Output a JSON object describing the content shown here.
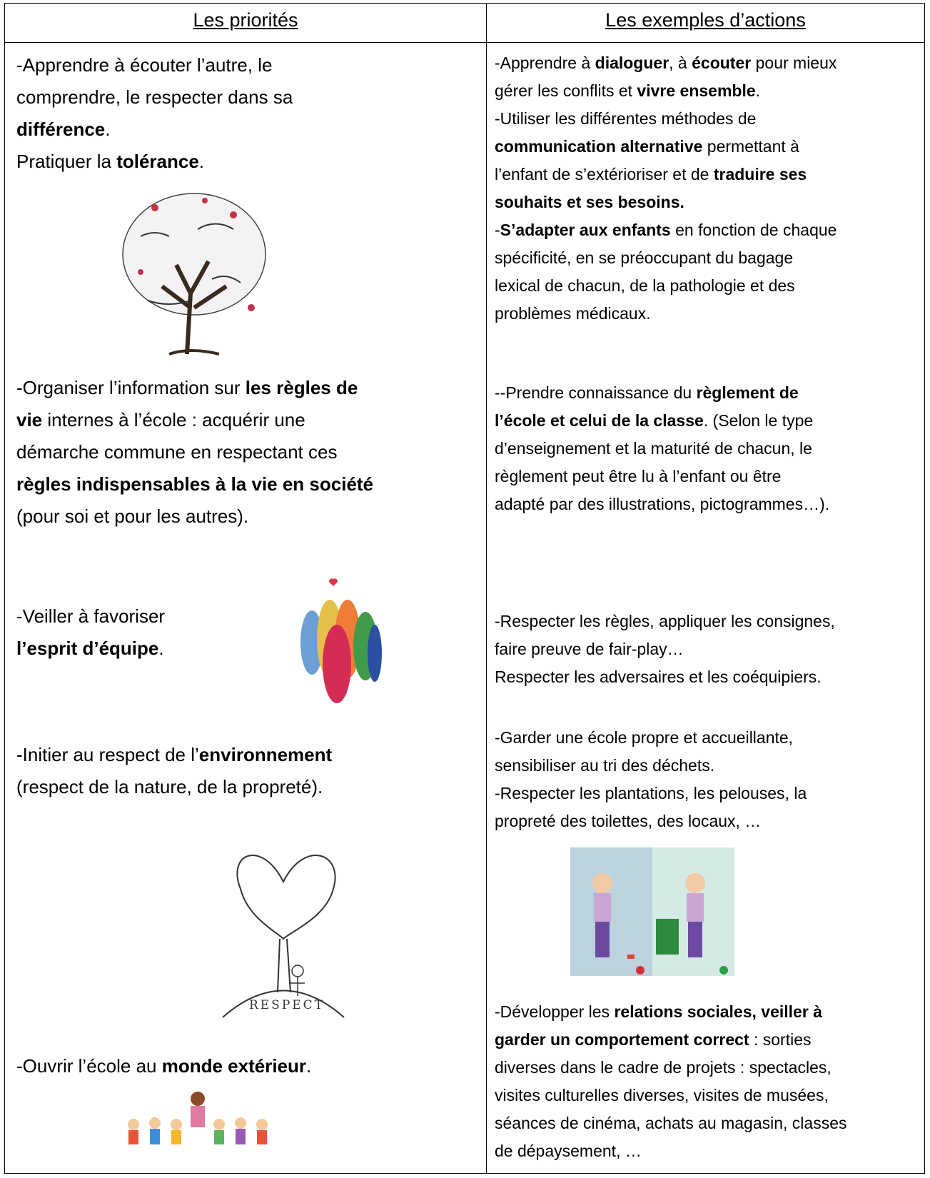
{
  "header": [
    "Les priorités",
    "Les exemples d’actions"
  ],
  "priorities": [
    [
      [
        "-Apprendre à écouter l’autre, le"
      ],
      [
        "comprendre, le respecter dans sa"
      ],
      [
        {
          "text": "différence",
          "bold": true
        },
        "."
      ],
      [
        "Pratiquer la ",
        {
          "text": "tolérance",
          "bold": true
        },
        "."
      ]
    ],
    [
      [
        "-Organiser l’information sur ",
        {
          "text": "les règles de",
          "bold": true
        }
      ],
      [
        {
          "text": "vie",
          "bold": true
        },
        " internes à l’école : acquérir une"
      ],
      [
        "démarche commune en respectant ces"
      ],
      [
        {
          "text": "règles indispensables à la vie en société",
          "bold": true
        }
      ],
      [
        "(pour soi et pour les autres)."
      ]
    ],
    [
      [
        "-Veiller à favoriser"
      ],
      [
        {
          "text": "l’esprit d’équipe",
          "bold": true
        },
        "."
      ]
    ],
    [
      [
        "-Initier au respect de l’",
        {
          "text": "environnement",
          "bold": true
        }
      ],
      [
        "(respect de la nature, de la propreté)."
      ]
    ],
    [
      [
        "-Ouvrir l’école au ",
        {
          "text": "monde extérieur",
          "bold": true
        },
        "."
      ]
    ]
  ],
  "actions": [
    [
      [
        "-Apprendre à ",
        {
          "text": "dialoguer",
          "bold": true
        },
        ", à ",
        {
          "text": "écouter",
          "bold": true
        },
        " pour mieux"
      ],
      [
        "gérer les conflits et ",
        {
          "text": "vivre ensemble",
          "bold": true
        },
        "."
      ],
      [
        "-Utiliser les différentes méthodes de"
      ],
      [
        {
          "text": "communication alternative",
          "bold": true
        },
        " permettant à"
      ],
      [
        "l’enfant de s’extérioriser et de ",
        {
          "text": "traduire ses",
          "bold": true
        }
      ],
      [
        {
          "text": "souhaits et ses besoins.",
          "bold": true
        }
      ],
      [
        "-",
        {
          "text": "S’adapter aux enfants",
          "bold": true
        },
        " en fonction de chaque"
      ],
      [
        "spécificité, en se préoccupant du bagage"
      ],
      [
        "lexical de chacun, de la pathologie et des"
      ],
      [
        "problèmes médicaux."
      ]
    ],
    [
      [
        "--Prendre connaissance du ",
        {
          "text": "règlement de",
          "bold": true
        }
      ],
      [
        {
          "text": "l’école et celui de la classe",
          "bold": true
        },
        ". (Selon le type"
      ],
      [
        "d’enseignement et la maturité de chacun, le"
      ],
      [
        "règlement peut être lu à l’enfant ou être"
      ],
      [
        "adapté par des illustrations, pictogrammes…)."
      ]
    ],
    [
      [
        "-Respecter les règles, appliquer les consignes,"
      ],
      [
        "faire preuve de fair-play…"
      ],
      [
        "Respecter les adversaires et les coéquipiers."
      ]
    ],
    [
      [
        "-Garder une école propre et accueillante,"
      ],
      [
        "sensibiliser au tri des déchets."
      ],
      [
        "-Respecter les plantations, les pelouses, la"
      ],
      [
        "propreté des toilettes, des locaux, …"
      ]
    ],
    [
      [
        "-Développer les ",
        {
          "text": "relations sociales, veiller à",
          "bold": true
        }
      ],
      [
        {
          "text": "garder un comportement correct",
          "bold": true
        },
        " : sorties"
      ],
      [
        "diverses dans le cadre de projets : spectacles,"
      ],
      [
        "visites culturelles diverses, visites de musées,"
      ],
      [
        "séances de cinéma, achats au magasin, classes"
      ],
      [
        "de dépaysement, …"
      ]
    ]
  ],
  "environment_image_caption": "RESPECT"
}
